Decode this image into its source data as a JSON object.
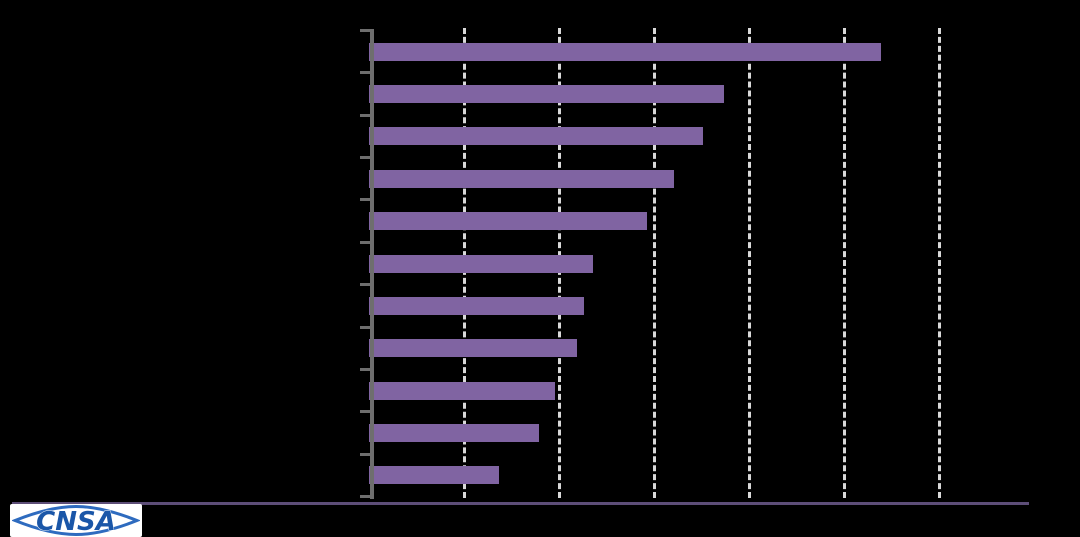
{
  "chart_data": {
    "type": "bar",
    "orientation": "horizontal",
    "title": "",
    "categories": [
      "",
      "",
      "",
      "",
      "",
      "",
      "",
      "",
      "",
      "",
      ""
    ],
    "values": [
      5.39,
      3.74,
      3.52,
      3.21,
      2.93,
      2.36,
      2.26,
      2.19,
      1.96,
      1.79,
      1.37
    ],
    "value_unit": "gridline-intervals (numeric axis labels are not visible in the image)",
    "xlim": [
      0,
      6
    ],
    "ylim_categories": 11,
    "grid": {
      "visible": true,
      "style": "dashed",
      "interval": 1,
      "count": 6
    },
    "legend": {
      "visible": false
    },
    "note": "All chart text (title, category labels, axis numbers, data labels) is black on a black background and not visible; only bars, dashed gridlines, gray axis with ticks, a purple divider line and the CNSA logo are visible."
  },
  "style": {
    "background": "#000000",
    "bar_color": "#8064A2",
    "gridline_color": "#D9D9D9",
    "axis_color": "#6E6E6E",
    "divider_color": "#5D4E78",
    "logo_blue": "#1A56A8",
    "logo_outline_blue": "#2E6BBF",
    "logo_background": "#FFFFFF"
  },
  "logo": {
    "text": "CNSA"
  }
}
